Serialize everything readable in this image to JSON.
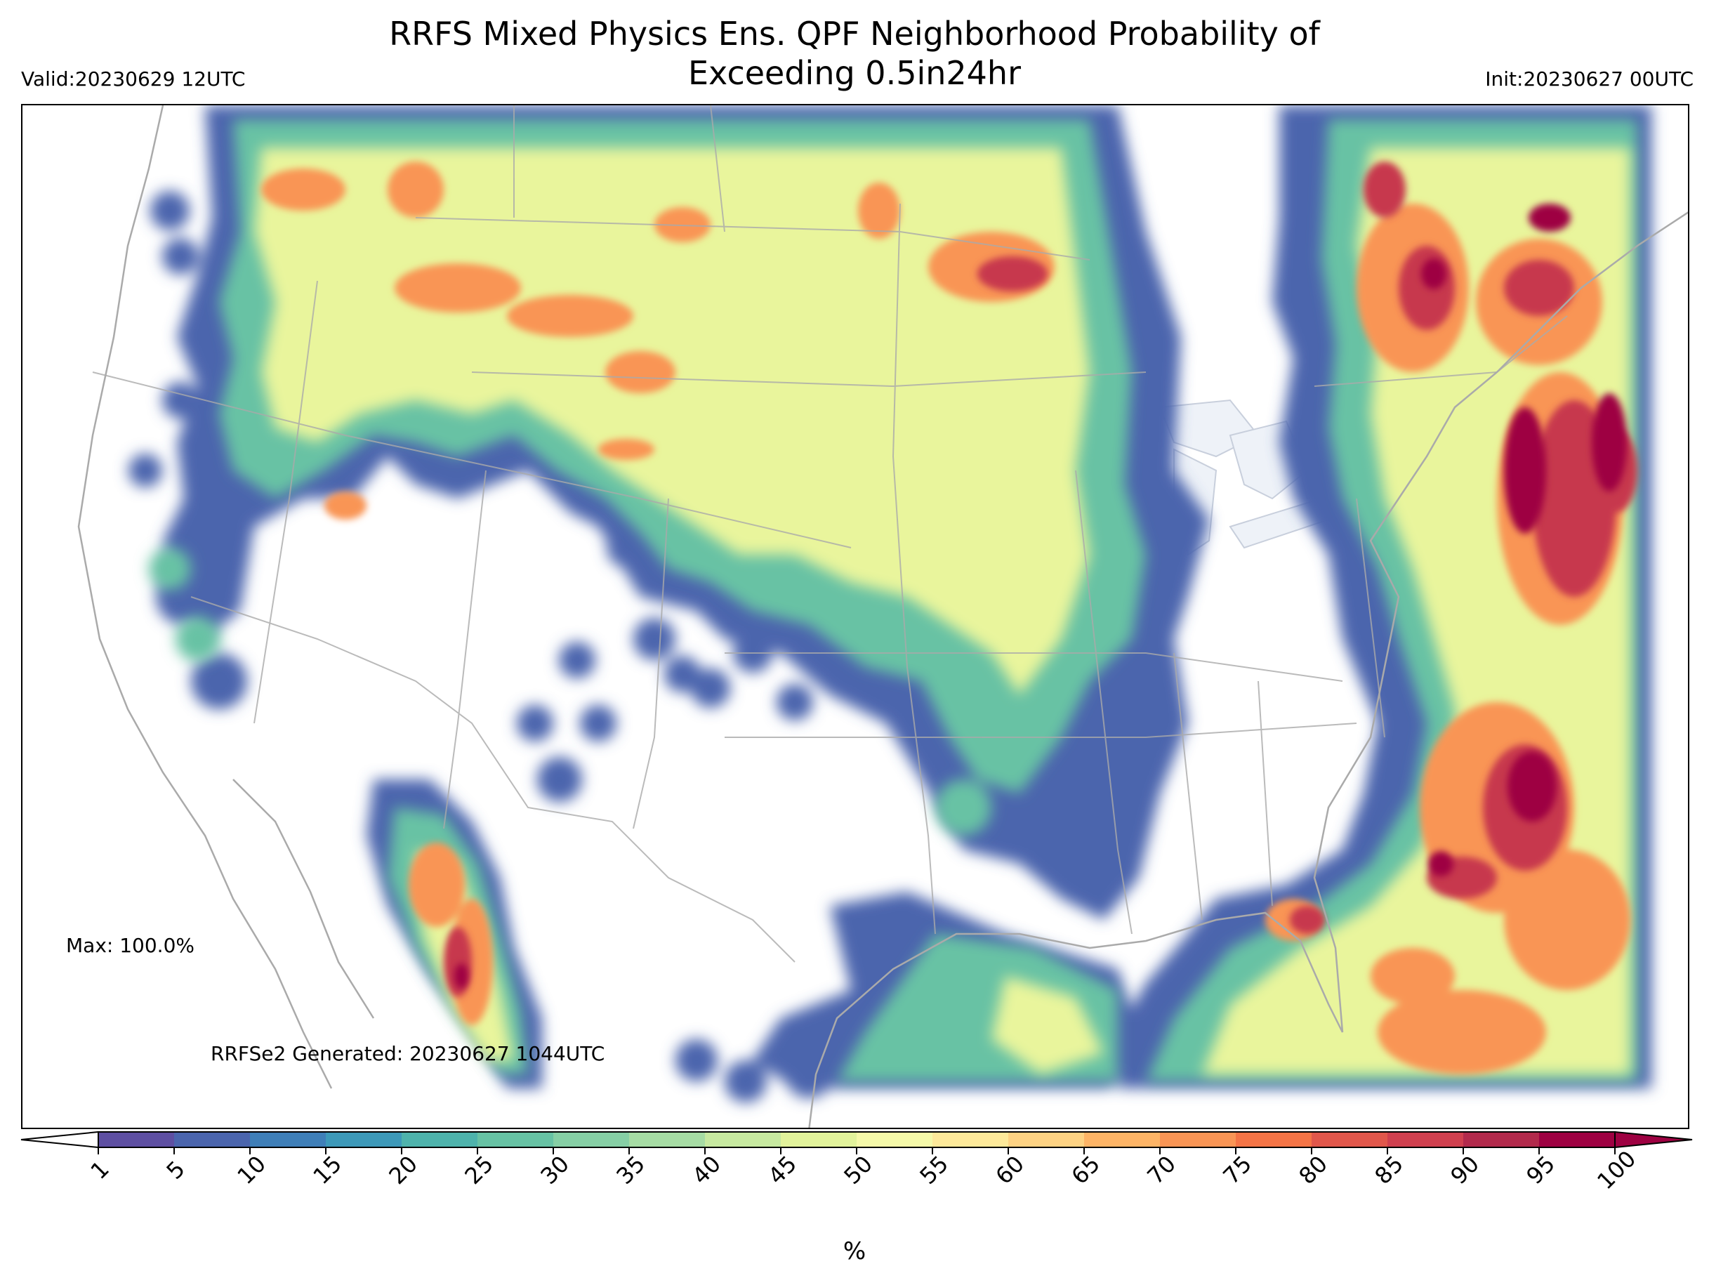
{
  "title_line1": "RRFS Mixed Physics Ens. QPF Neighborhood Probability of",
  "title_line2": "Exceeding 0.5in24hr",
  "valid": "Valid:20230629 12UTC",
  "init": "Init:20230627 00UTC",
  "max_label": "Max: 100.0%",
  "generated": "RRFSe2 Generated: 20230627 1044UTC",
  "colorbar": {
    "unit": "%",
    "ticks": [
      "1",
      "5",
      "10",
      "15",
      "20",
      "25",
      "30",
      "35",
      "40",
      "45",
      "50",
      "55",
      "60",
      "65",
      "70",
      "75",
      "80",
      "85",
      "90",
      "95",
      "100"
    ],
    "colors": [
      "#5e4fa2",
      "#4b65ad",
      "#3f7fb8",
      "#3d99b9",
      "#4eb3ac",
      "#67c2a4",
      "#86cfa5",
      "#a6dca4",
      "#c7e9a0",
      "#e2f39b",
      "#f5f9a9",
      "#fde99a",
      "#fdd283",
      "#fdb466",
      "#f99555",
      "#f47446",
      "#e1574b",
      "#d0404f",
      "#b22a4c",
      "#9e0142"
    ]
  },
  "colors": {
    "state_lines": "#aaaaaa",
    "coastline": "#aaaaaa",
    "great_lakes": "#eef2f8"
  }
}
